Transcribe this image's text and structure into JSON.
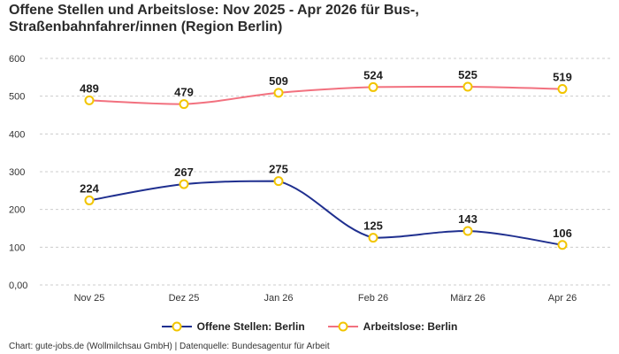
{
  "title_lines": [
    "Offene Stellen und Arbeitslose: Nov 2025 - Apr 2026 für Bus-,",
    "Straßenbahnfahrer/innen (Region Berlin)"
  ],
  "footer": "Chart: gute-jobs.de (Wollmilchsau GmbH) | Datenquelle: Bundesagentur für Arbeit",
  "colors": {
    "offene": "#1f2f8f",
    "arbeitslose": "#f2717f",
    "marker": "#f2c500",
    "grid": "#cccccc"
  },
  "chart_data": {
    "type": "line",
    "title": "Offene Stellen und Arbeitslose: Nov 2025 - Apr 2026 für Bus-, Straßenbahnfahrer/innen (Region Berlin)",
    "categories": [
      "Nov 25",
      "Dez 25",
      "Jan 26",
      "Feb 26",
      "März 26",
      "Apr 26"
    ],
    "series": [
      {
        "name": "Offene Stellen: Berlin",
        "values": [
          224,
          267,
          275,
          125,
          143,
          106
        ]
      },
      {
        "name": "Arbeitslose: Berlin",
        "values": [
          489,
          479,
          509,
          524,
          525,
          519
        ]
      }
    ],
    "y_ticks": [
      "0,00",
      "100",
      "200",
      "300",
      "400",
      "500",
      "600"
    ],
    "ylim": [
      0,
      600
    ],
    "grid": true,
    "legend_position": "bottom"
  }
}
